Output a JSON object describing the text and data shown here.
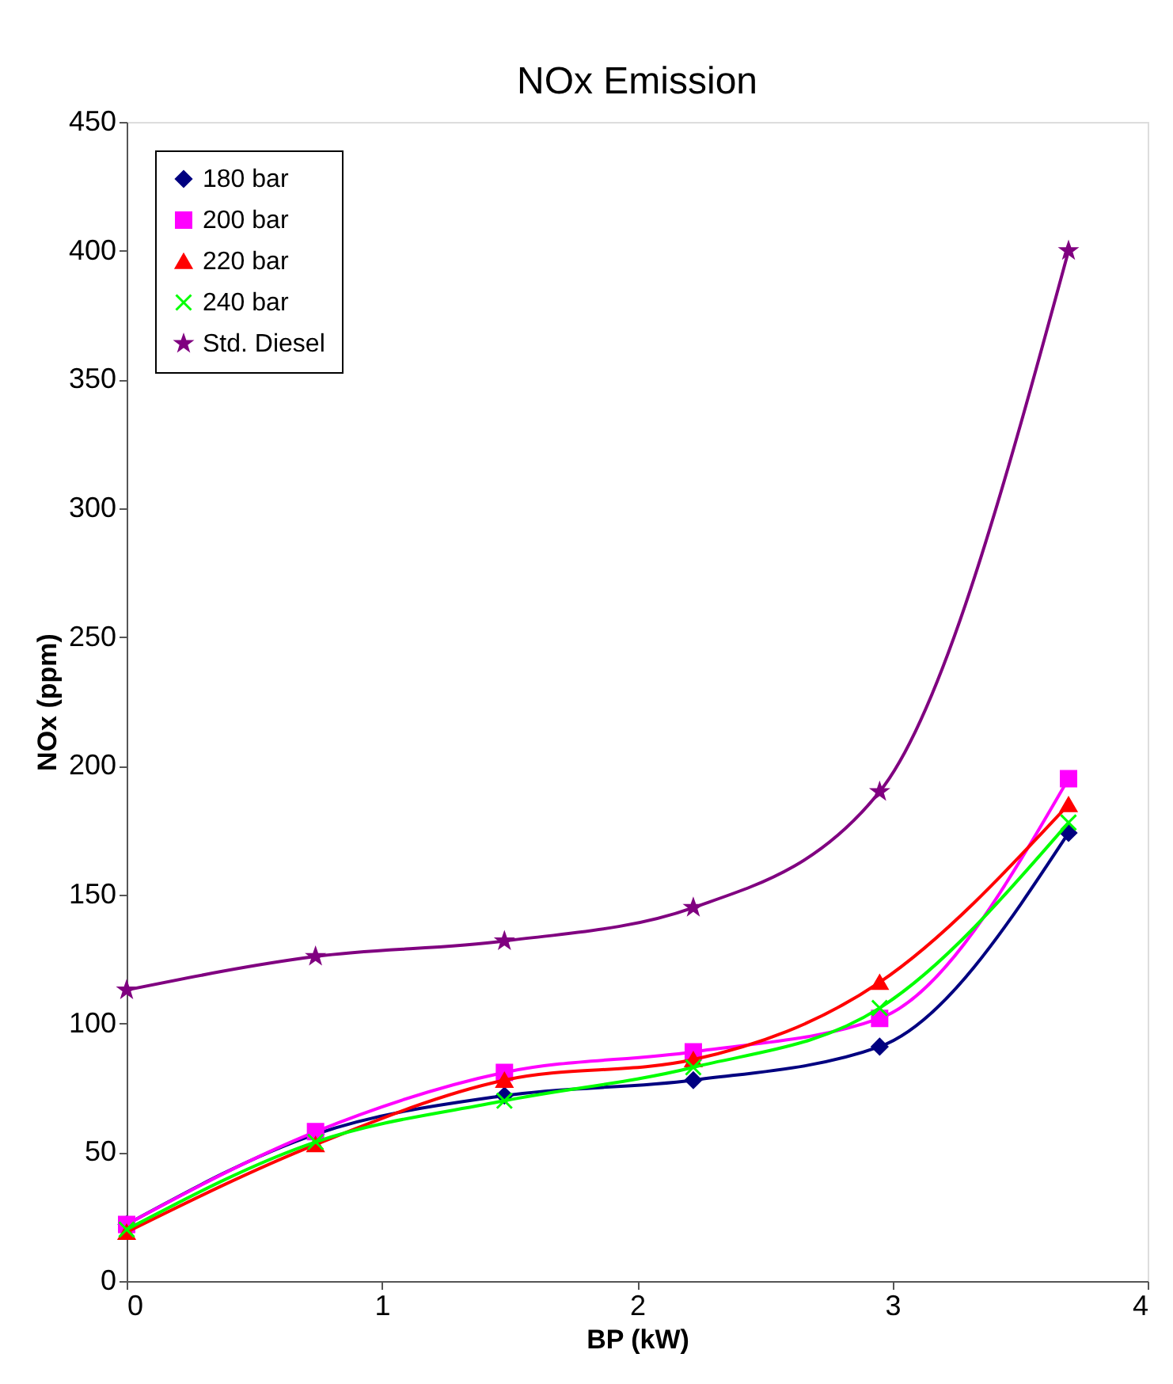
{
  "chart_data": {
    "type": "line",
    "title": "NOx Emission",
    "xlabel": "BP (kW)",
    "ylabel": "NOx (ppm)",
    "x": [
      0,
      0.74,
      1.48,
      2.22,
      2.95,
      3.69
    ],
    "series": [
      {
        "name": "180 bar",
        "color": "#000080",
        "marker": "diamond",
        "values": [
          22,
          57,
          72,
          78,
          91,
          174
        ]
      },
      {
        "name": "200 bar",
        "color": "#ff00ff",
        "marker": "square",
        "values": [
          22,
          58,
          81,
          89,
          102,
          195
        ]
      },
      {
        "name": "220 bar",
        "color": "#ff0000",
        "marker": "triangle",
        "values": [
          19,
          53,
          78,
          86,
          116,
          185
        ]
      },
      {
        "name": "240 bar",
        "color": "#00ff00",
        "marker": "cross",
        "values": [
          20,
          54,
          70,
          83,
          106,
          178
        ]
      },
      {
        "name": "Std. Diesel",
        "color": "#800080",
        "marker": "star",
        "values": [
          113,
          126,
          132,
          145,
          190,
          400
        ]
      }
    ],
    "xlim": [
      0,
      4
    ],
    "xticks": [
      0,
      1,
      2,
      3,
      4
    ],
    "ylim": [
      0,
      450
    ],
    "yticks": [
      0,
      50,
      100,
      150,
      200,
      250,
      300,
      350,
      400,
      450
    ],
    "grid": false,
    "legend": "top left",
    "line_style": "solid"
  }
}
